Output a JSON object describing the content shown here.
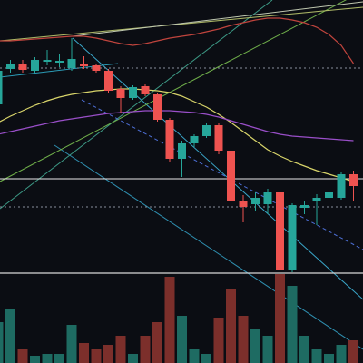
{
  "chart_data": {
    "type": "candlestick",
    "up_color": "#26a69a",
    "down_color": "#ef5350",
    "volume_up_color": "#1e6b62",
    "volume_down_color": "#7c2f2b",
    "ylim": [
      90,
      120
    ],
    "volume_lim": [
      0,
      100
    ],
    "open": [
      108.5,
      112.4,
      113.0,
      112.2,
      113.2,
      113.1,
      112.5,
      112.9,
      112.8,
      112.2,
      110.2,
      109.2,
      110.5,
      109.6,
      106.8,
      102.5,
      104.2,
      105.0,
      106.2,
      103.4,
      97.8,
      97.5,
      97.5,
      98.8,
      90.3,
      97.1,
      97.8,
      98.2,
      98.2,
      100.8
    ],
    "high": [
      113.0,
      113.4,
      113.4,
      113.7,
      114.5,
      114.0,
      115.8,
      113.8,
      113.0,
      112.4,
      110.5,
      110.6,
      110.7,
      109.8,
      107.0,
      104.5,
      105.2,
      106.4,
      106.5,
      103.6,
      98.5,
      98.8,
      99.2,
      99.0,
      97.6,
      97.8,
      98.6,
      99.0,
      101.0,
      101.2
    ],
    "low": [
      108.2,
      112.0,
      112.0,
      112.0,
      112.8,
      112.6,
      112.2,
      112.4,
      112.0,
      109.8,
      107.5,
      109.0,
      109.4,
      106.6,
      102.2,
      100.5,
      103.8,
      104.8,
      103.0,
      96.0,
      95.5,
      96.8,
      96.4,
      90.0,
      90.0,
      96.4,
      95.2,
      97.8,
      98.0,
      97.8
    ],
    "close": [
      112.2,
      113.0,
      112.3,
      113.4,
      113.4,
      113.3,
      113.5,
      112.7,
      112.2,
      110.0,
      109.2,
      110.4,
      109.6,
      106.8,
      102.5,
      104.2,
      105.0,
      106.2,
      103.4,
      97.8,
      97.2,
      98.2,
      98.8,
      90.2,
      97.4,
      97.4,
      98.2,
      98.8,
      100.8,
      99.5
    ],
    "volume": [
      45,
      60,
      15,
      8,
      10,
      10,
      42,
      22,
      15,
      20,
      30,
      10,
      30,
      45,
      95,
      52,
      15,
      10,
      50,
      82,
      52,
      38,
      30,
      98,
      85,
      30,
      15,
      10,
      20,
      25
    ],
    "overlays": [
      {
        "color": "#d8d46a",
        "values": [
          106.5,
          107.2,
          107.8,
          108.4,
          108.9,
          109.3,
          109.6,
          109.8,
          110.0,
          110.1,
          110.2,
          110.2,
          110.1,
          110.0,
          109.8,
          109.4,
          108.8,
          108.2,
          107.4,
          106.5,
          105.5,
          104.5,
          103.5,
          102.8,
          102.2,
          101.7,
          101.2,
          100.8,
          100.4,
          100.0
        ]
      },
      {
        "color": "#9a4fc9",
        "values": [
          105.2,
          105.5,
          105.8,
          106.1,
          106.4,
          106.7,
          106.9,
          107.1,
          107.3,
          107.5,
          107.6,
          107.7,
          107.8,
          107.8,
          107.8,
          107.7,
          107.6,
          107.4,
          107.1,
          106.7,
          106.3,
          105.9,
          105.5,
          105.2,
          105.0,
          104.9,
          104.8,
          104.7,
          104.6,
          104.5
        ]
      },
      {
        "color": "#c0443d",
        "values": [
          115.5,
          115.5,
          115.6,
          115.7,
          115.8,
          115.9,
          116.0,
          116.0,
          115.8,
          115.5,
          115.2,
          115.0,
          115.2,
          115.5,
          115.8,
          116.0,
          116.2,
          116.5,
          116.8,
          117.2,
          117.5,
          117.8,
          118.0,
          118.0,
          117.8,
          117.5,
          117.0,
          116.2,
          115.0,
          113.0
        ]
      }
    ],
    "levels": [
      {
        "value": 112.5,
        "color": "#8a8f9c",
        "dashed": true
      },
      {
        "value": 100.3,
        "color": "#e8e8e8",
        "dashed": false
      },
      {
        "value": 97.2,
        "color": "#8a8f9c",
        "dashed": true
      }
    ]
  }
}
